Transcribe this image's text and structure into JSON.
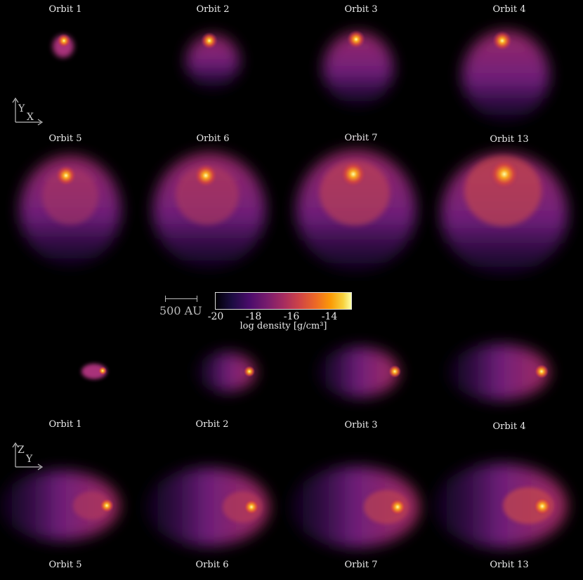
{
  "top_row_labels": [
    "Orbit 1",
    "Orbit 2",
    "Orbit 3",
    "Orbit 4",
    "Orbit 5",
    "Orbit 6",
    "Orbit 7",
    "Orbit 13"
  ],
  "bottom_row_labels": [
    "Orbit 1",
    "Orbit 2",
    "Orbit 3",
    "Orbit 4",
    "Orbit 5",
    "Orbit 6",
    "Orbit 7",
    "Orbit 13"
  ],
  "axes_top": {
    "vertical": "Y",
    "horizontal": "X"
  },
  "axes_bottom": {
    "vertical": "Z",
    "horizontal": "Y"
  },
  "scale_bar": {
    "label": "500 AU"
  },
  "colorbar": {
    "title": "log density [g/cm³]",
    "ticks": [
      "-20",
      "-18",
      "-16",
      "-14"
    ],
    "colormap": "inferno",
    "colors": [
      "#000004",
      "#4a0c6b",
      "#a52c60",
      "#ed6925",
      "#fcffa4"
    ]
  }
}
